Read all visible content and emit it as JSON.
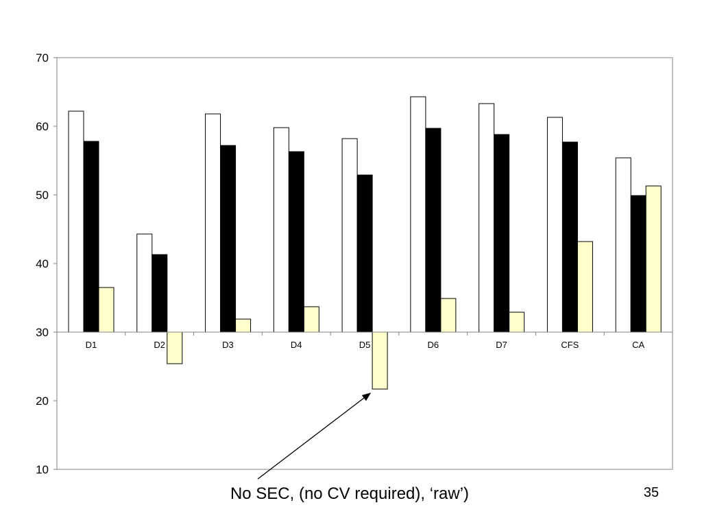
{
  "slide": {
    "annotation": "No SEC, (no CV required), ‘raw’)",
    "page_number": "35"
  },
  "colors": {
    "series_1": "#ffffff",
    "series_2": "#000000",
    "series_3": "#ffffcc",
    "bar_outline": "#000000",
    "axis": "#808080"
  },
  "chart_data": {
    "type": "bar",
    "title": "",
    "xlabel": "",
    "ylabel": "",
    "categories": [
      "D1",
      "D2",
      "D3",
      "D4",
      "D5",
      "D6",
      "D7",
      "CFS",
      "CA"
    ],
    "baseline": 30,
    "ylim": [
      10,
      70
    ],
    "yticks": [
      10,
      20,
      30,
      40,
      50,
      60,
      70
    ],
    "grid": false,
    "legend": "none",
    "series": [
      {
        "values": [
          62.2,
          44.3,
          61.8,
          59.8,
          58.2,
          64.3,
          63.3,
          61.3,
          55.4
        ]
      },
      {
        "values": [
          57.8,
          41.3,
          57.2,
          56.3,
          52.9,
          59.7,
          58.8,
          57.7,
          49.9
        ]
      },
      {
        "values": [
          36.5,
          25.4,
          31.9,
          33.7,
          21.7,
          34.9,
          32.9,
          43.2,
          51.3
        ]
      }
    ],
    "annotation": {
      "text": "No SEC, (no CV required), ‘raw’)",
      "points_to": {
        "category": "D5",
        "series": 3,
        "value": 21.7
      }
    }
  }
}
